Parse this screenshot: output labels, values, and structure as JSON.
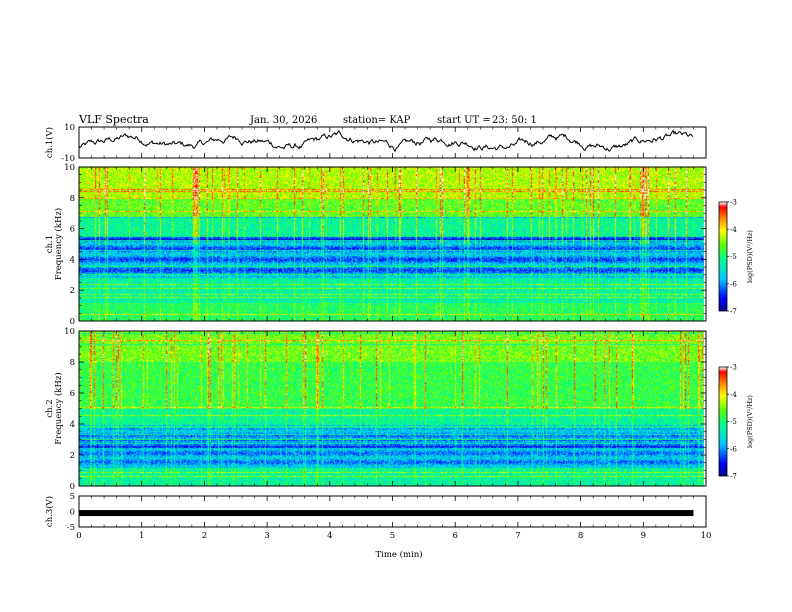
{
  "header": {
    "title": "VLF Spectra",
    "date": "Jan. 30, 2026",
    "station": "station= KAP",
    "start_label": "start  UT  =",
    "start_time": "23: 50: 1"
  },
  "chart_data": {
    "type": "heatmap",
    "title": "VLF Spectra",
    "xlabel": "Time (min)",
    "xlim": [
      0,
      10
    ],
    "x_ticks": [
      "0",
      "1",
      "2",
      "3",
      "4",
      "5",
      "6",
      "7",
      "8",
      "9",
      "10"
    ],
    "panels": [
      {
        "id": "ch1-waveform",
        "type": "line",
        "ylabel": "ch.1(V)",
        "ylim": [
          -10,
          10
        ],
        "y_ticks": [
          "10",
          "-10"
        ],
        "x_end": 9.8
      },
      {
        "id": "ch1-spectrogram",
        "type": "heatmap",
        "ylabel_line1": "ch.1",
        "ylabel_line2": "Frequency (kHz)",
        "ylim": [
          0,
          10
        ],
        "y_ticks": [
          "0",
          "2",
          "4",
          "6",
          "8",
          "10"
        ],
        "colorbar": {
          "label": "log(PSD)(V²/Hz)",
          "range": [
            -7,
            -3
          ],
          "ticks": [
            "-3",
            "-4",
            "-5",
            "-6",
            "-7"
          ]
        }
      },
      {
        "id": "ch2-spectrogram",
        "type": "heatmap",
        "ylabel_line1": "ch.2",
        "ylabel_line2": "Frequency (kHz)",
        "ylim": [
          0,
          10
        ],
        "y_ticks": [
          "0",
          "2",
          "4",
          "6",
          "8",
          "10"
        ],
        "colorbar": {
          "label": "log(PSD)(V²/Hz)",
          "range": [
            -7,
            -3
          ],
          "ticks": [
            "-3",
            "-4",
            "-5",
            "-6",
            "-7"
          ]
        }
      },
      {
        "id": "ch3-waveform",
        "type": "line",
        "ylabel": "ch.3(V)",
        "ylim": [
          -5,
          5
        ],
        "y_ticks": [
          "5",
          "0",
          "-5"
        ],
        "level": -0.5,
        "x_end": 9.8
      }
    ]
  },
  "colors": {
    "colormap": [
      "#000080",
      "#0000ff",
      "#00c0ff",
      "#00ff80",
      "#ffff00",
      "#ff8000",
      "#ff0000",
      "#ffffff"
    ]
  }
}
